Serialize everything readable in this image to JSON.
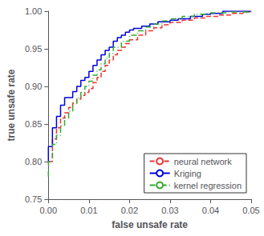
{
  "chart_data": {
    "type": "step",
    "xlabel": "false unsafe rate",
    "ylabel": "true unsafe rate",
    "xlim": [
      0,
      0.05
    ],
    "ylim": [
      0.75,
      1.0
    ],
    "xticks": [
      {
        "value": 0,
        "label": "0.00"
      },
      0.01,
      0.02,
      0.03,
      0.04,
      0.05
    ],
    "yticks": [
      0.75,
      {
        "value": 0.8,
        "label": "0.80"
      },
      0.85,
      {
        "value": 0.9,
        "label": "0.90"
      },
      0.95,
      {
        "value": 1.0,
        "label": "1.00"
      }
    ],
    "grid": false,
    "legend": "lower right",
    "series": [
      {
        "name": "neural network",
        "color": "#ee3333",
        "line_style": "dashed",
        "x": [
          0.0,
          0.001,
          0.001,
          0.002,
          0.002,
          0.003,
          0.003,
          0.004,
          0.004,
          0.005,
          0.005,
          0.006,
          0.006,
          0.007,
          0.007,
          0.008,
          0.008,
          0.009,
          0.009,
          0.01,
          0.01,
          0.011,
          0.012,
          0.013,
          0.014,
          0.015,
          0.016,
          0.017,
          0.018,
          0.019,
          0.02,
          0.022,
          0.024,
          0.026,
          0.028,
          0.03,
          0.033,
          0.036,
          0.039,
          0.042,
          0.045,
          0.048,
          0.05
        ],
        "values": [
          0.8,
          0.8,
          0.83,
          0.83,
          0.845,
          0.845,
          0.858,
          0.858,
          0.865,
          0.865,
          0.872,
          0.872,
          0.878,
          0.878,
          0.883,
          0.883,
          0.888,
          0.888,
          0.892,
          0.892,
          0.897,
          0.905,
          0.912,
          0.92,
          0.928,
          0.935,
          0.942,
          0.948,
          0.952,
          0.957,
          0.962,
          0.968,
          0.974,
          0.978,
          0.982,
          0.985,
          0.988,
          0.991,
          0.993,
          0.995,
          0.997,
          0.999,
          0.999
        ]
      },
      {
        "name": "Kriging",
        "color": "#0000dd",
        "line_style": "solid",
        "x": [
          0.0,
          0.0,
          0.001,
          0.001,
          0.002,
          0.002,
          0.003,
          0.003,
          0.004,
          0.004,
          0.005,
          0.006,
          0.007,
          0.008,
          0.009,
          0.01,
          0.011,
          0.012,
          0.013,
          0.014,
          0.015,
          0.016,
          0.017,
          0.018,
          0.019,
          0.02,
          0.021,
          0.023,
          0.025,
          0.027,
          0.03,
          0.032,
          0.035,
          0.038,
          0.04,
          0.043,
          0.05
        ],
        "values": [
          0.8,
          0.82,
          0.82,
          0.845,
          0.845,
          0.86,
          0.86,
          0.875,
          0.875,
          0.885,
          0.885,
          0.893,
          0.9,
          0.908,
          0.912,
          0.92,
          0.928,
          0.935,
          0.942,
          0.948,
          0.952,
          0.96,
          0.965,
          0.968,
          0.972,
          0.975,
          0.977,
          0.98,
          0.983,
          0.986,
          0.988,
          0.99,
          0.993,
          0.996,
          0.997,
          1.0,
          1.0
        ]
      },
      {
        "name": "kernel regression",
        "color": "#33aa33",
        "line_style": "dashdot",
        "x": [
          0.0,
          0.0,
          0.001,
          0.001,
          0.002,
          0.002,
          0.003,
          0.003,
          0.004,
          0.004,
          0.005,
          0.005,
          0.006,
          0.006,
          0.007,
          0.007,
          0.008,
          0.008,
          0.009,
          0.01,
          0.011,
          0.012,
          0.013,
          0.014,
          0.015,
          0.016,
          0.018,
          0.02,
          0.022,
          0.024,
          0.026,
          0.028,
          0.03,
          0.033,
          0.036,
          0.04,
          0.044,
          0.05
        ],
        "values": [
          0.78,
          0.8,
          0.8,
          0.823,
          0.823,
          0.835,
          0.835,
          0.848,
          0.848,
          0.858,
          0.858,
          0.867,
          0.867,
          0.877,
          0.877,
          0.885,
          0.885,
          0.892,
          0.9,
          0.907,
          0.915,
          0.922,
          0.93,
          0.937,
          0.944,
          0.952,
          0.96,
          0.968,
          0.974,
          0.979,
          0.983,
          0.987,
          0.99,
          0.993,
          0.996,
          0.998,
          0.999,
          1.0
        ]
      }
    ]
  }
}
